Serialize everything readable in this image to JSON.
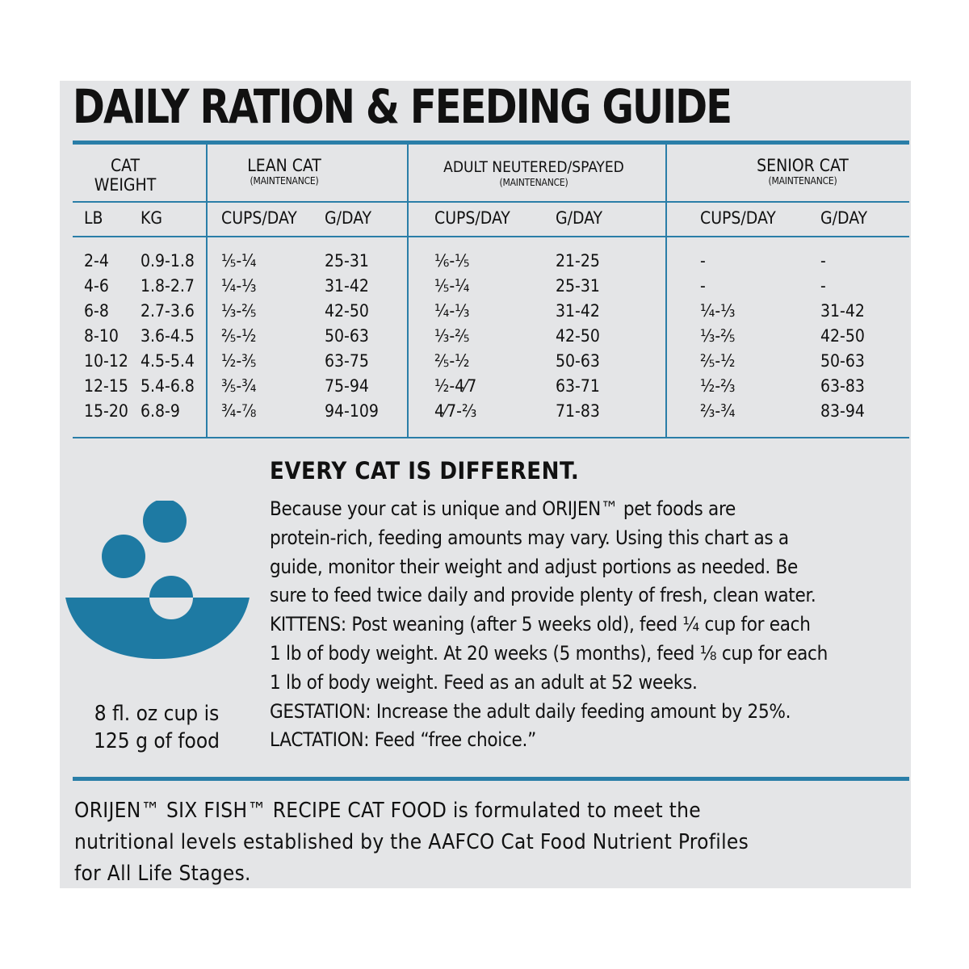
{
  "title": "DAILY RATION & FEEDING GUIDE",
  "table": {
    "col_weight": {
      "line1": "CAT",
      "line2": "WEIGHT"
    },
    "groups": [
      {
        "name": "LEAN CAT",
        "sub": "(MAINTENANCE)"
      },
      {
        "name": "ADULT NEUTERED/SPAYED",
        "sub": "(MAINTENANCE)"
      },
      {
        "name": "SENIOR CAT",
        "sub": "(MAINTENANCE)"
      }
    ],
    "units": [
      "LB",
      "KG",
      "CUPS/DAY",
      "G/DAY",
      "CUPS/DAY",
      "G/DAY",
      "CUPS/DAY",
      "G/DAY"
    ],
    "rows": [
      [
        "2-4",
        "0.9-1.8",
        "⅕-¼",
        "25-31",
        "⅙-⅕",
        "21-25",
        "-",
        "-"
      ],
      [
        "4-6",
        "1.8-2.7",
        "¼-⅓",
        "31-42",
        "⅕-¼",
        "25-31",
        "-",
        "-"
      ],
      [
        "6-8",
        "2.7-3.6",
        "⅓-⅖",
        "42-50",
        "¼-⅓",
        "31-42",
        "¼-⅓",
        "31-42"
      ],
      [
        "8-10",
        "3.6-4.5",
        "⅖-½",
        "50-63",
        "⅓-⅖",
        "42-50",
        "⅓-⅖",
        "42-50"
      ],
      [
        "10-12",
        "4.5-5.4",
        "½-⅗",
        "63-75",
        "⅖-½",
        "50-63",
        "⅖-½",
        "50-63"
      ],
      [
        "12-15",
        "5.4-6.8",
        "⅗-¾",
        "75-94",
        "½-4⁄7",
        "63-71",
        "½-⅔",
        "63-83"
      ],
      [
        "15-20",
        "6.8-9",
        "¾-⅞",
        "94-109",
        "4⁄7-⅔",
        "71-83",
        "⅔-¾",
        "83-94"
      ]
    ]
  },
  "note": {
    "heading": "EVERY CAT IS DIFFERENT.",
    "lines": [
      "Because your cat is unique and ORIJEN™ pet foods are",
      "protein-rich, feeding amounts may vary. Using this chart as a",
      "guide, monitor their weight and adjust portions as needed. Be",
      "sure to feed twice daily and provide plenty of fresh, clean water.",
      "KITTENS: Post weaning (after 5 weeks old), feed ¼ cup for each",
      "1 lb of body weight. At 20 weeks (5 months), feed ⅛ cup for each",
      "1 lb of body weight. Feed as an adult at 52 weeks.",
      "GESTATION: Increase the adult daily feeding amount by 25%.",
      "LACTATION: Feed “free choice.”"
    ]
  },
  "caption": {
    "line1": "8 fl. oz cup is",
    "line2": "125 g of food"
  },
  "footer": {
    "lines": [
      "ORIJEN™ SIX FISH™ RECIPE CAT FOOD is formulated to meet the",
      "nutritional levels established by the AAFCO Cat Food Nutrient Profiles",
      "for All Life Stages."
    ]
  },
  "colors": {
    "accent": "#2a7ea8",
    "bowl": "#1e7aa3",
    "panel": "#e4e5e7"
  },
  "icon": "bowl-with-kibble-icon",
  "chart_data": {
    "type": "table",
    "title": "DAILY RATION & FEEDING GUIDE",
    "columns": [
      "LB",
      "KG",
      "LEAN CAT CUPS/DAY",
      "LEAN CAT G/DAY",
      "ADULT NEUTERED/SPAYED CUPS/DAY",
      "ADULT NEUTERED/SPAYED G/DAY",
      "SENIOR CAT CUPS/DAY",
      "SENIOR CAT G/DAY"
    ]
  }
}
